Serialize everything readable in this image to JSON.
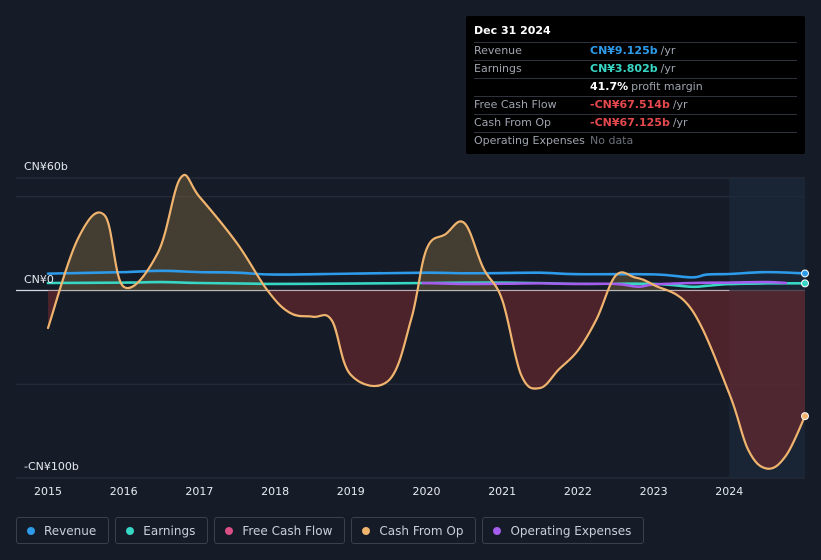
{
  "tooltip": {
    "date": "Dec 31 2024",
    "rows": [
      {
        "label": "Revenue",
        "value": "CN¥9.125b",
        "unit": "/yr",
        "color": "#2e9bea"
      },
      {
        "label": "Earnings",
        "value": "CN¥3.802b",
        "unit": "/yr",
        "color": "#38d6c4"
      },
      {
        "label": "",
        "value": "41.7%",
        "unit": "profit margin",
        "color": "#ffffff"
      },
      {
        "label": "Free Cash Flow",
        "value": "-CN¥67.514b",
        "unit": "/yr",
        "color": "#e5484d"
      },
      {
        "label": "Cash From Op",
        "value": "-CN¥67.125b",
        "unit": "/yr",
        "color": "#e5484d"
      },
      {
        "label": "Operating Expenses",
        "value": "No data",
        "unit": "",
        "color": "#6b7079"
      }
    ]
  },
  "y_axis": {
    "top_label": "CN¥60b",
    "zero_label": "CN¥0",
    "bottom_label": "-CN¥100b"
  },
  "legend": [
    {
      "label": "Revenue",
      "color": "#2e9bea"
    },
    {
      "label": "Earnings",
      "color": "#38d6c4"
    },
    {
      "label": "Free Cash Flow",
      "color": "#d94f86"
    },
    {
      "label": "Cash From Op",
      "color": "#f0b46e"
    },
    {
      "label": "Operating Expenses",
      "color": "#a45ded"
    }
  ],
  "chart_data": {
    "type": "line",
    "x_ticks": [
      "2015",
      "2016",
      "2017",
      "2018",
      "2019",
      "2020",
      "2021",
      "2022",
      "2023",
      "2024"
    ],
    "ylim": [
      -100,
      60
    ],
    "y_ticks": [
      60,
      0,
      -100
    ],
    "grid": true,
    "highlight_start": 2024.0,
    "series": [
      {
        "name": "Revenue",
        "color": "#2e9bea",
        "x": [
          2015.0,
          2016.0,
          2016.5,
          2017.0,
          2017.5,
          2018.0,
          2019.0,
          2020.0,
          2020.5,
          2021.0,
          2021.5,
          2022.0,
          2023.0,
          2023.5,
          2023.7,
          2024.0,
          2024.5,
          2025.0
        ],
        "y": [
          9.0,
          9.8,
          10.5,
          9.8,
          9.5,
          8.5,
          9.0,
          9.5,
          9.2,
          9.3,
          9.5,
          8.7,
          8.6,
          7.0,
          8.5,
          8.8,
          9.8,
          9.1
        ]
      },
      {
        "name": "Earnings",
        "color": "#38d6c4",
        "x": [
          2015.0,
          2016.0,
          2016.5,
          2017.0,
          2018.0,
          2019.0,
          2020.0,
          2021.0,
          2022.0,
          2023.0,
          2023.5,
          2023.7,
          2024.0,
          2024.5,
          2025.0
        ],
        "y": [
          4.0,
          4.2,
          4.5,
          4.0,
          3.5,
          3.7,
          4.0,
          4.2,
          3.6,
          3.5,
          2.0,
          2.5,
          3.4,
          3.8,
          3.8
        ]
      },
      {
        "name": "Operating Expenses",
        "color": "#a45ded",
        "x": [
          2019.95,
          2020.5,
          2021.0,
          2021.5,
          2022.0,
          2022.5,
          2022.8,
          2023.0,
          2023.5,
          2024.0,
          2024.5,
          2024.75
        ],
        "y": [
          4.0,
          3.5,
          3.6,
          3.8,
          3.5,
          3.5,
          2.0,
          3.2,
          4.0,
          4.2,
          4.5,
          4.0
        ]
      },
      {
        "name": "Cash From Op",
        "color": "#f0b46e",
        "x": [
          2015.0,
          2015.4,
          2015.75,
          2016.0,
          2016.45,
          2016.75,
          2017.0,
          2017.5,
          2017.9,
          2018.2,
          2018.5,
          2018.75,
          2019.0,
          2019.5,
          2019.8,
          2020.0,
          2020.25,
          2020.5,
          2020.75,
          2021.0,
          2021.25,
          2021.5,
          2021.75,
          2022.0,
          2022.25,
          2022.5,
          2022.75,
          2023.0,
          2023.5,
          2024.0,
          2024.25,
          2024.5,
          2024.75,
          2025.0
        ],
        "y": [
          -20,
          28,
          40,
          2,
          20,
          60,
          50,
          25,
          0,
          -12,
          -14,
          -16,
          -45,
          -48,
          -15,
          22,
          30,
          36,
          12,
          -5,
          -45,
          -52,
          -42,
          -32,
          -15,
          8,
          7,
          3,
          -10,
          -55,
          -85,
          -95,
          -88,
          -67
        ]
      }
    ]
  }
}
